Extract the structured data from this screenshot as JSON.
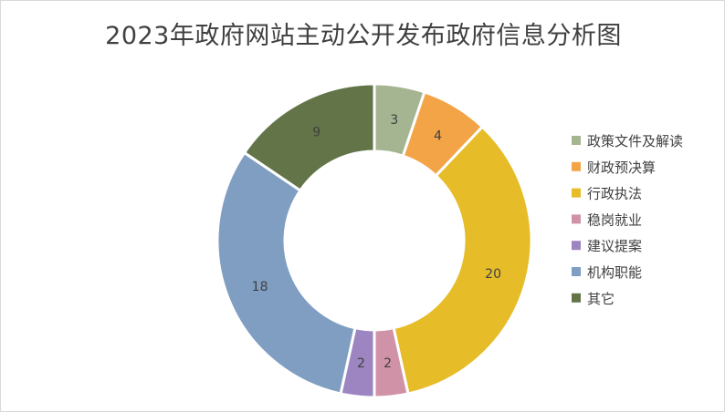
{
  "chart_data": {
    "type": "pie",
    "variant": "donut",
    "title": "2023年政府网站主动公开发布政府信息分析图",
    "legend_position": "right",
    "slices": [
      {
        "name": "政策文件及解读",
        "value": 3,
        "color": "#a5b592"
      },
      {
        "name": "财政预决算",
        "value": 4,
        "color": "#f3a447"
      },
      {
        "name": "行政执法",
        "value": 20,
        "color": "#e7bc29"
      },
      {
        "name": "稳岗就业",
        "value": 2,
        "color": "#d092a7"
      },
      {
        "name": "建议提案",
        "value": 2,
        "color": "#9c85c0"
      },
      {
        "name": "机构职能",
        "value": 18,
        "color": "#809ec2"
      },
      {
        "name": "其它",
        "value": 9,
        "color": "#637548"
      }
    ]
  }
}
